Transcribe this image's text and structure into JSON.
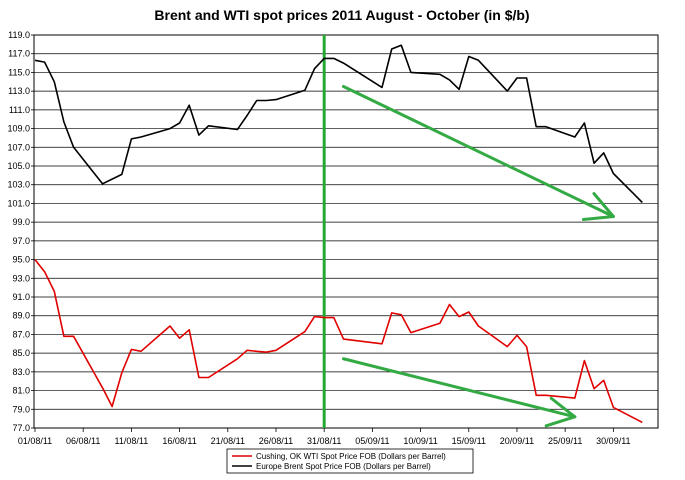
{
  "chart_data": {
    "type": "line",
    "title": "Brent and WTI spot prices 2011 August - October (in $/b)",
    "xlabel": "",
    "ylabel": "",
    "ylim": [
      77.0,
      119.0
    ],
    "y_ticks": [
      "119.0",
      "117.0",
      "115.0",
      "113.0",
      "111.0",
      "109.0",
      "107.0",
      "105.0",
      "103.0",
      "101.0",
      "99.0",
      "97.0",
      "95.0",
      "93.0",
      "91.0",
      "89.0",
      "87.0",
      "85.0",
      "83.0",
      "81.0",
      "79.0",
      "77.0"
    ],
    "x_ticks": [
      "01/08/11",
      "06/08/11",
      "11/08/11",
      "16/08/11",
      "21/08/11",
      "26/08/11",
      "31/08/11",
      "05/09/11",
      "10/09/11",
      "15/09/11",
      "20/09/11",
      "25/09/11",
      "30/09/11"
    ],
    "grid": "horizontal",
    "legend_position": "bottom",
    "series": [
      {
        "name": "Cushing, OK WTI Spot Price FOB (Dollars per Barrel)",
        "color": "#e00000",
        "points": [
          [
            "01/08/11",
            95.0
          ],
          [
            "02/08/11",
            93.7
          ],
          [
            "03/08/11",
            91.6
          ],
          [
            "04/08/11",
            86.8
          ],
          [
            "05/08/11",
            86.8
          ],
          [
            "08/08/11",
            81.3
          ],
          [
            "09/08/11",
            79.3
          ],
          [
            "10/08/11",
            82.9
          ],
          [
            "11/08/11",
            85.4
          ],
          [
            "12/08/11",
            85.2
          ],
          [
            "15/08/11",
            87.9
          ],
          [
            "16/08/11",
            86.6
          ],
          [
            "17/08/11",
            87.5
          ],
          [
            "18/08/11",
            82.4
          ],
          [
            "19/08/11",
            82.4
          ],
          [
            "22/08/11",
            84.4
          ],
          [
            "23/08/11",
            85.3
          ],
          [
            "24/08/11",
            85.2
          ],
          [
            "25/08/11",
            85.1
          ],
          [
            "26/08/11",
            85.3
          ],
          [
            "29/08/11",
            87.3
          ],
          [
            "30/08/11",
            88.9
          ],
          [
            "31/08/11",
            88.8
          ],
          [
            "01/09/11",
            88.8
          ],
          [
            "02/09/11",
            86.5
          ],
          [
            "06/09/11",
            86.0
          ],
          [
            "07/09/11",
            89.3
          ],
          [
            "08/09/11",
            89.1
          ],
          [
            "09/09/11",
            87.2
          ],
          [
            "12/09/11",
            88.2
          ],
          [
            "13/09/11",
            90.2
          ],
          [
            "14/09/11",
            88.9
          ],
          [
            "15/09/11",
            89.4
          ],
          [
            "16/09/11",
            87.9
          ],
          [
            "19/09/11",
            85.7
          ],
          [
            "20/09/11",
            86.9
          ],
          [
            "21/09/11",
            85.7
          ],
          [
            "22/09/11",
            80.5
          ],
          [
            "23/09/11",
            80.5
          ],
          [
            "26/09/11",
            80.2
          ],
          [
            "27/09/11",
            84.2
          ],
          [
            "28/09/11",
            81.2
          ],
          [
            "29/09/11",
            82.1
          ],
          [
            "30/09/11",
            79.2
          ],
          [
            "03/10/11",
            77.6
          ]
        ]
      },
      {
        "name": "Europe Brent Spot Price FOB (Dollars per Barrel)",
        "color": "#000000",
        "points": [
          [
            "01/08/11",
            116.3
          ],
          [
            "02/08/11",
            116.1
          ],
          [
            "03/08/11",
            114.0
          ],
          [
            "04/08/11",
            109.7
          ],
          [
            "05/08/11",
            107.0
          ],
          [
            "08/08/11",
            103.1
          ],
          [
            "09/08/11",
            103.6
          ],
          [
            "10/08/11",
            104.1
          ],
          [
            "11/08/11",
            107.9
          ],
          [
            "12/08/11",
            108.1
          ],
          [
            "15/08/11",
            109.0
          ],
          [
            "16/08/11",
            109.6
          ],
          [
            "17/08/11",
            111.5
          ],
          [
            "18/08/11",
            108.3
          ],
          [
            "19/08/11",
            109.3
          ],
          [
            "22/08/11",
            108.9
          ],
          [
            "23/08/11",
            110.4
          ],
          [
            "24/08/11",
            112.0
          ],
          [
            "25/08/11",
            112.0
          ],
          [
            "26/08/11",
            112.1
          ],
          [
            "29/08/11",
            113.1
          ],
          [
            "30/08/11",
            115.4
          ],
          [
            "31/08/11",
            116.5
          ],
          [
            "01/09/11",
            116.5
          ],
          [
            "02/09/11",
            116.0
          ],
          [
            "06/09/11",
            113.4
          ],
          [
            "07/09/11",
            117.5
          ],
          [
            "08/09/11",
            117.9
          ],
          [
            "09/09/11",
            115.0
          ],
          [
            "12/09/11",
            114.8
          ],
          [
            "13/09/11",
            114.2
          ],
          [
            "14/09/11",
            113.2
          ],
          [
            "15/09/11",
            116.7
          ],
          [
            "16/09/11",
            116.3
          ],
          [
            "19/09/11",
            113.0
          ],
          [
            "20/09/11",
            114.4
          ],
          [
            "21/09/11",
            114.4
          ],
          [
            "22/09/11",
            109.2
          ],
          [
            "23/09/11",
            109.2
          ],
          [
            "26/09/11",
            108.1
          ],
          [
            "27/09/11",
            109.6
          ],
          [
            "28/09/11",
            105.3
          ],
          [
            "29/09/11",
            106.4
          ],
          [
            "30/09/11",
            104.2
          ],
          [
            "03/10/11",
            101.1
          ]
        ]
      }
    ],
    "annotations": {
      "vertical_marker": {
        "x": "31/08/11",
        "color": "#22aa33"
      },
      "trend_arrows": [
        {
          "from": [
            "02/09/11",
            113.5
          ],
          "to": [
            "30/09/11",
            99.6
          ],
          "color": "#33aa44"
        },
        {
          "from": [
            "02/09/11",
            84.4
          ],
          "to": [
            "26/09/11",
            78.2
          ],
          "color": "#33aa44"
        }
      ]
    }
  }
}
